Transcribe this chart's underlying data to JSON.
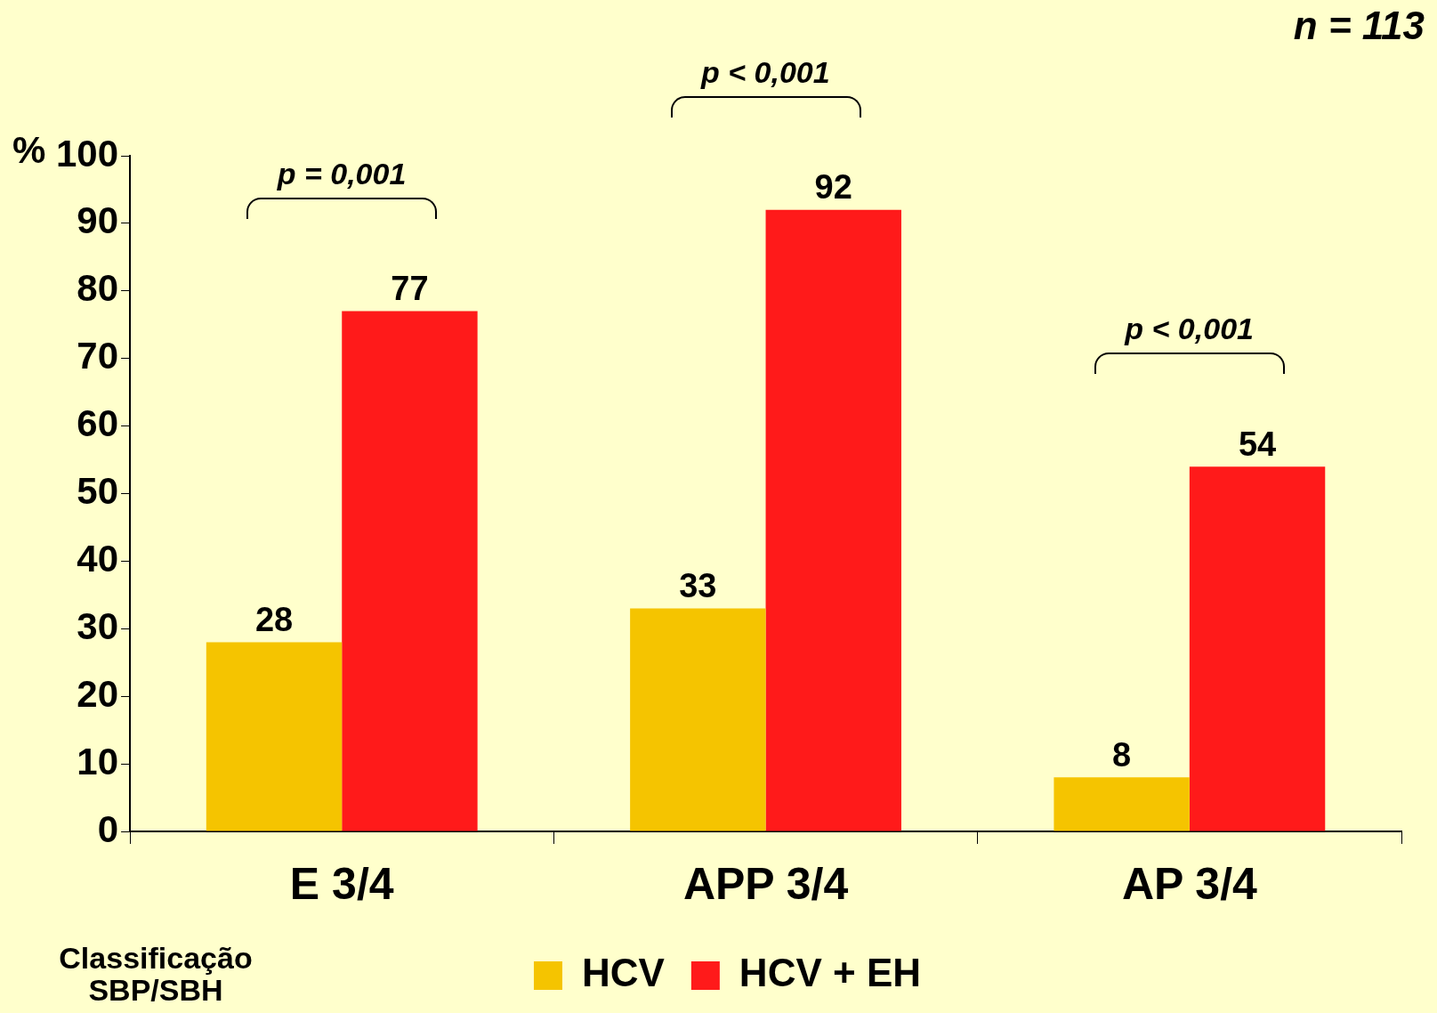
{
  "chart_data": {
    "type": "bar",
    "ylabel": "%",
    "categories": [
      "E 3/4",
      "APP 3/4",
      "AP 3/4"
    ],
    "series": [
      {
        "name": "HCV",
        "color": "#f5c400",
        "values": [
          28,
          33,
          8
        ]
      },
      {
        "name": "HCV + EH",
        "color": "#ff1a1a",
        "values": [
          77,
          92,
          54
        ]
      }
    ],
    "ylim": [
      0,
      100
    ],
    "yticks": [
      0,
      10,
      20,
      30,
      40,
      50,
      60,
      70,
      80,
      90,
      100
    ],
    "grid": false,
    "legend": "bottom",
    "data_labels": true,
    "annotations": [
      "n = 113",
      "p = 0,001",
      "p < 0,001",
      "p < 0,001",
      "Classificação SBP/SBH"
    ]
  }
}
